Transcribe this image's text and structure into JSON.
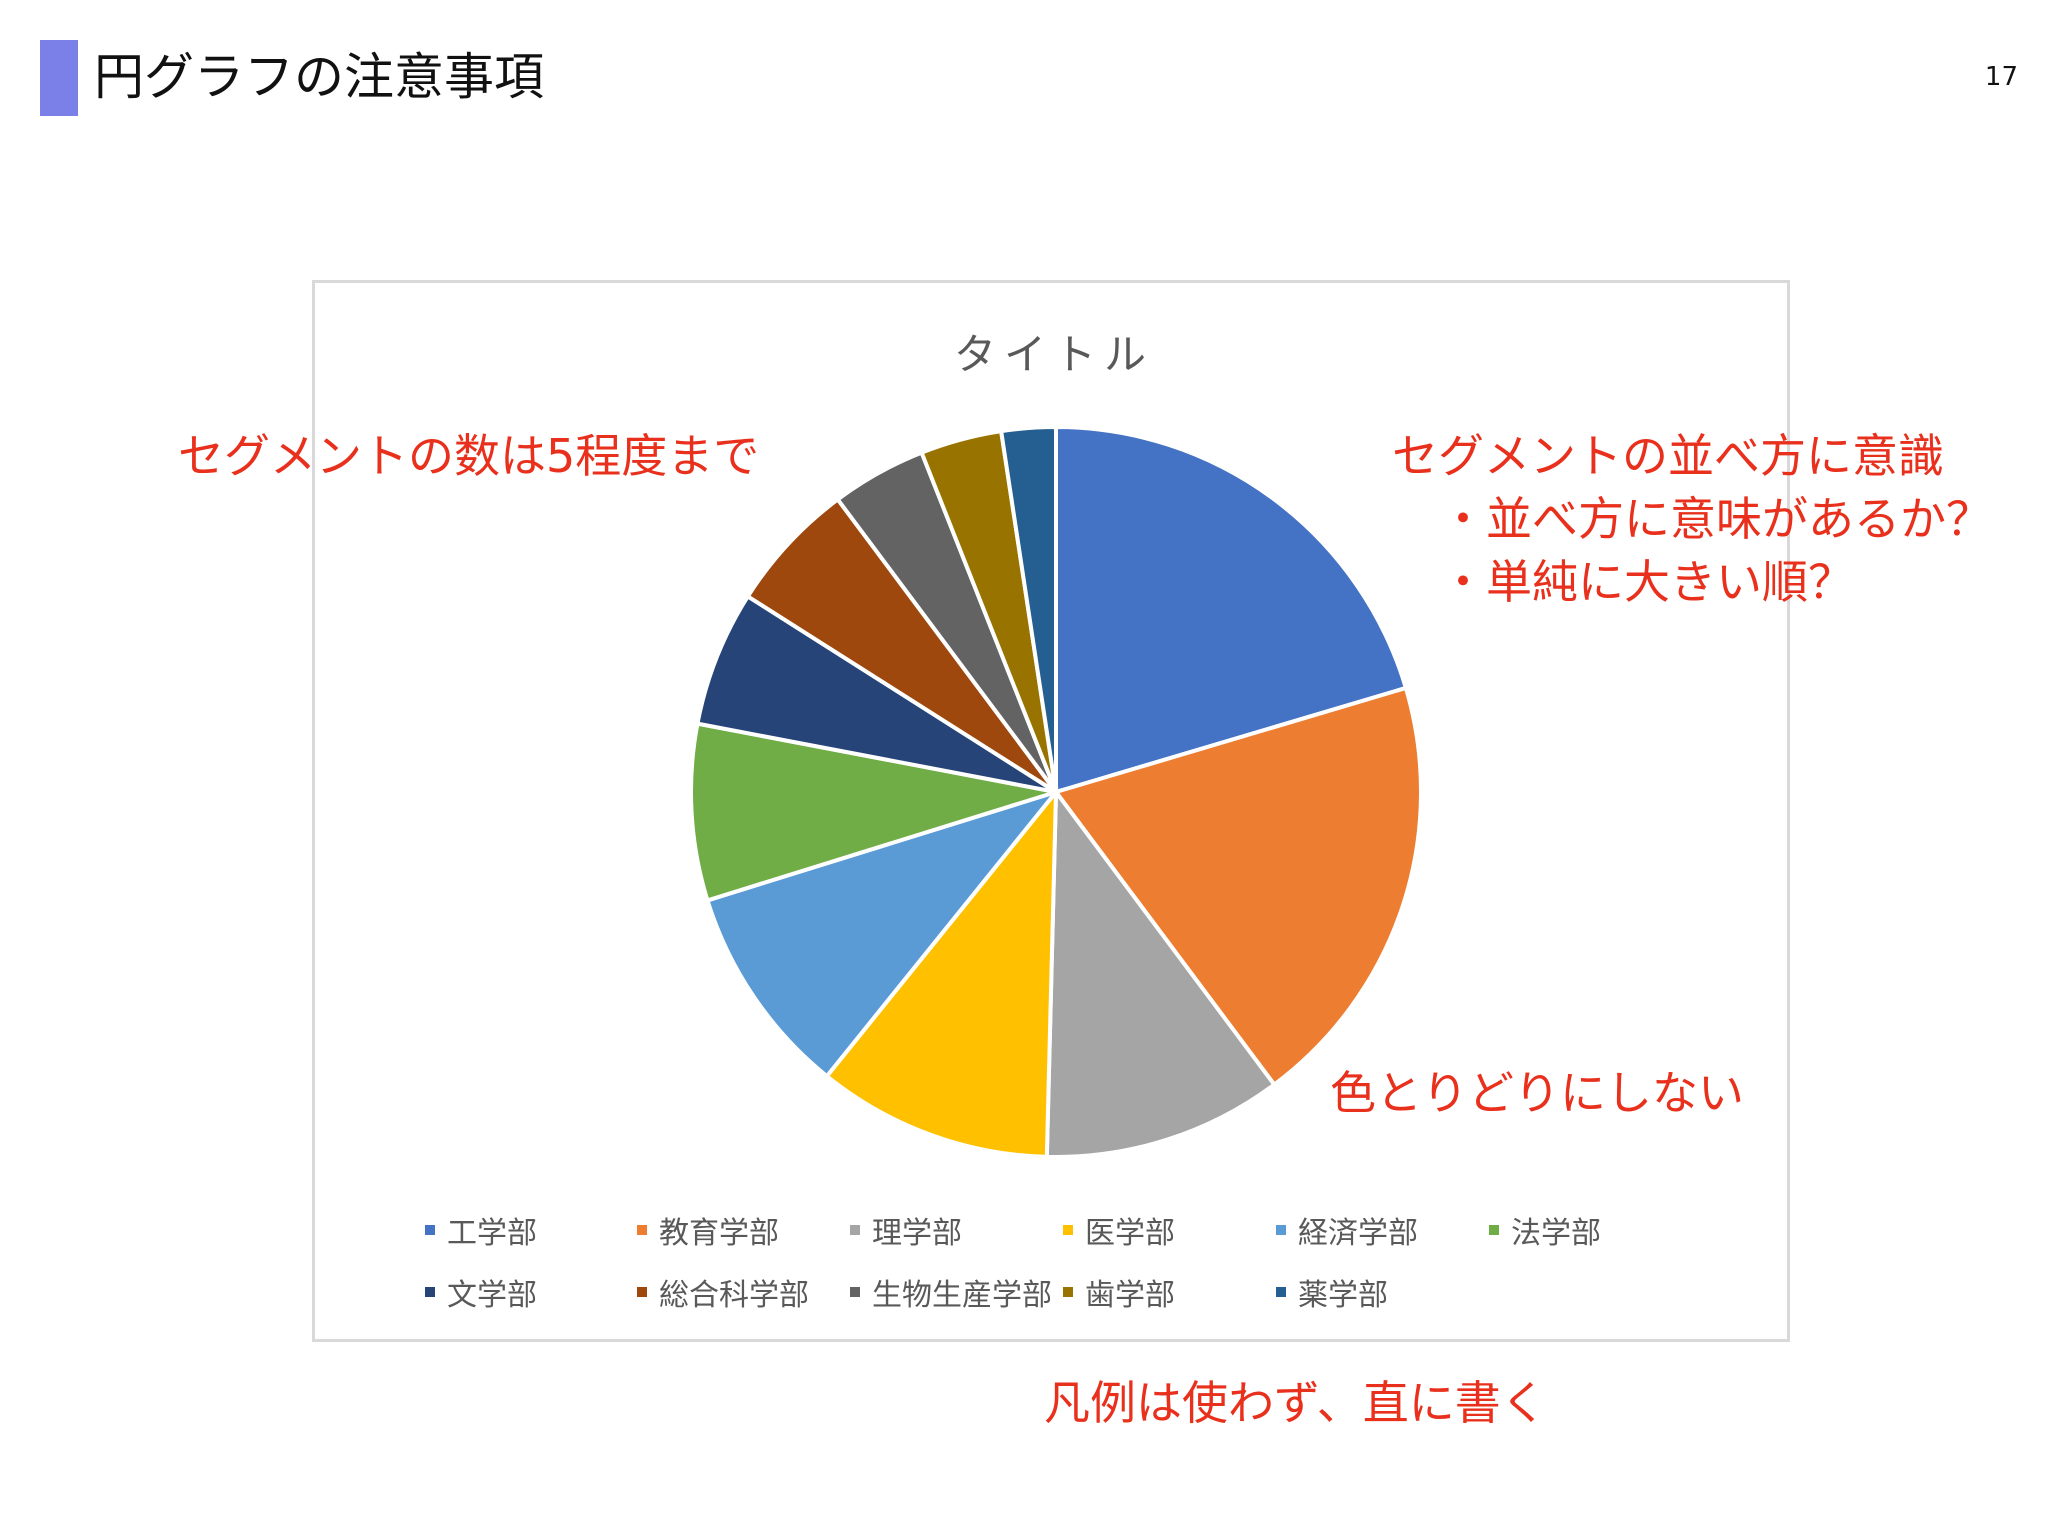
{
  "slide": {
    "title": "円グラフの注意事項",
    "page_number": "17",
    "accent_color": "#7b7fe8"
  },
  "chart_data": {
    "type": "pie",
    "title": "タイトル",
    "categories": [
      "工学部",
      "教育学部",
      "理学部",
      "医学部",
      "経済学部",
      "法学部",
      "文学部",
      "総合科学部",
      "生物生産学部",
      "歯学部",
      "薬学部"
    ],
    "values": [
      20.4,
      19.4,
      10.6,
      10.4,
      9.4,
      7.8,
      6.0,
      5.8,
      4.2,
      3.6,
      2.4
    ],
    "colors": [
      "#4472c4",
      "#ed7d31",
      "#a5a5a5",
      "#ffc000",
      "#5b9bd5",
      "#70ad47",
      "#264478",
      "#9e480e",
      "#636363",
      "#997300",
      "#255e91"
    ],
    "legend_position": "bottom",
    "start_angle_deg": 0,
    "direction": "clockwise"
  },
  "annotations": {
    "segment_count": "セグメントの数は5程度まで",
    "segment_order_lines": [
      "セグメントの並べ方に意識",
      "・並べ方に意味があるか？",
      "・単純に大きい順？"
    ],
    "colors": "色とりどりにしない",
    "legend": "凡例は使わず、直に書く",
    "color": "#e8301c"
  }
}
